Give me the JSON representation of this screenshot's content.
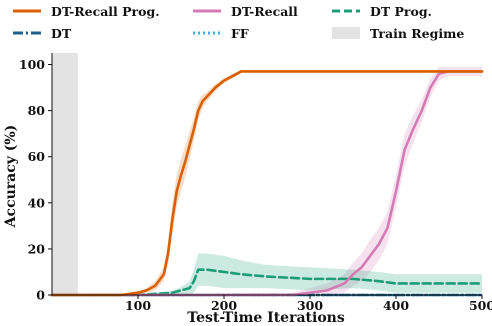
{
  "chart_data": {
    "type": "line",
    "xlabel": "Test-Time Iterations",
    "ylabel": "Accuracy (%)",
    "xlim": [
      0,
      500
    ],
    "ylim": [
      0,
      105
    ],
    "xticks": [
      100,
      200,
      300,
      400,
      500
    ],
    "yticks": [
      0,
      20,
      40,
      60,
      80,
      100
    ],
    "grid": false,
    "legend_position": "top",
    "shaded_region": {
      "label": "Train Regime",
      "x": [
        0,
        30
      ],
      "color": "#e3e3e3"
    },
    "series": [
      {
        "name": "DT-Recall Prog.",
        "color": "#d95f02",
        "style": "solid",
        "x": [
          0,
          80,
          100,
          110,
          120,
          130,
          135,
          140,
          145,
          150,
          155,
          160,
          165,
          170,
          175,
          180,
          190,
          200,
          210,
          220,
          230,
          300,
          400,
          500
        ],
        "y": [
          0,
          0,
          1,
          2,
          4,
          9,
          18,
          33,
          45,
          52,
          58,
          65,
          72,
          80,
          84,
          86,
          90,
          93,
          95,
          97,
          97,
          97,
          97,
          97
        ],
        "band": [
          0,
          0,
          0.5,
          1,
          2,
          3,
          5,
          7,
          7,
          7,
          7,
          6,
          5,
          4,
          3,
          2,
          1.5,
          1,
          1,
          0.5,
          0.5,
          0.5,
          0.5,
          0.5
        ]
      },
      {
        "name": "DT-Recall",
        "color": "#d47bb4",
        "style": "solid",
        "x": [
          0,
          280,
          300,
          320,
          340,
          350,
          360,
          370,
          380,
          390,
          400,
          410,
          420,
          430,
          440,
          450,
          460,
          470,
          480,
          500
        ],
        "y": [
          0,
          0,
          1,
          2,
          5,
          9,
          12,
          17,
          22,
          29,
          45,
          63,
          72,
          80,
          90,
          96,
          97,
          97,
          97,
          97
        ],
        "band": [
          0,
          1,
          2,
          3,
          4,
          5,
          6,
          7,
          7,
          7,
          7,
          7,
          6,
          5,
          4,
          3,
          2,
          2,
          2,
          2
        ]
      },
      {
        "name": "DT Prog.",
        "color": "#1b9e77",
        "style": "dashed",
        "x": [
          0,
          100,
          120,
          140,
          150,
          160,
          165,
          170,
          180,
          200,
          220,
          250,
          300,
          350,
          380,
          400,
          420,
          500
        ],
        "y": [
          0,
          0,
          0.5,
          1,
          2,
          3,
          6,
          11,
          11,
          10,
          9,
          8,
          7,
          7,
          6,
          5,
          5,
          5
        ],
        "band": [
          0,
          0,
          0.3,
          0.7,
          1.5,
          3,
          5,
          7,
          7,
          7,
          6,
          5,
          5,
          4,
          4,
          4,
          4,
          4
        ]
      },
      {
        "name": "DT",
        "color": "#1f5f8b",
        "style": "dashdot",
        "x": [
          0,
          500
        ],
        "y": [
          0,
          0
        ],
        "band": [
          0,
          0
        ]
      },
      {
        "name": "FF",
        "color": "#3fb1e0",
        "style": "dotted",
        "x": [
          0,
          500
        ],
        "y": [
          0,
          0
        ],
        "band": [
          0,
          0
        ]
      }
    ]
  }
}
